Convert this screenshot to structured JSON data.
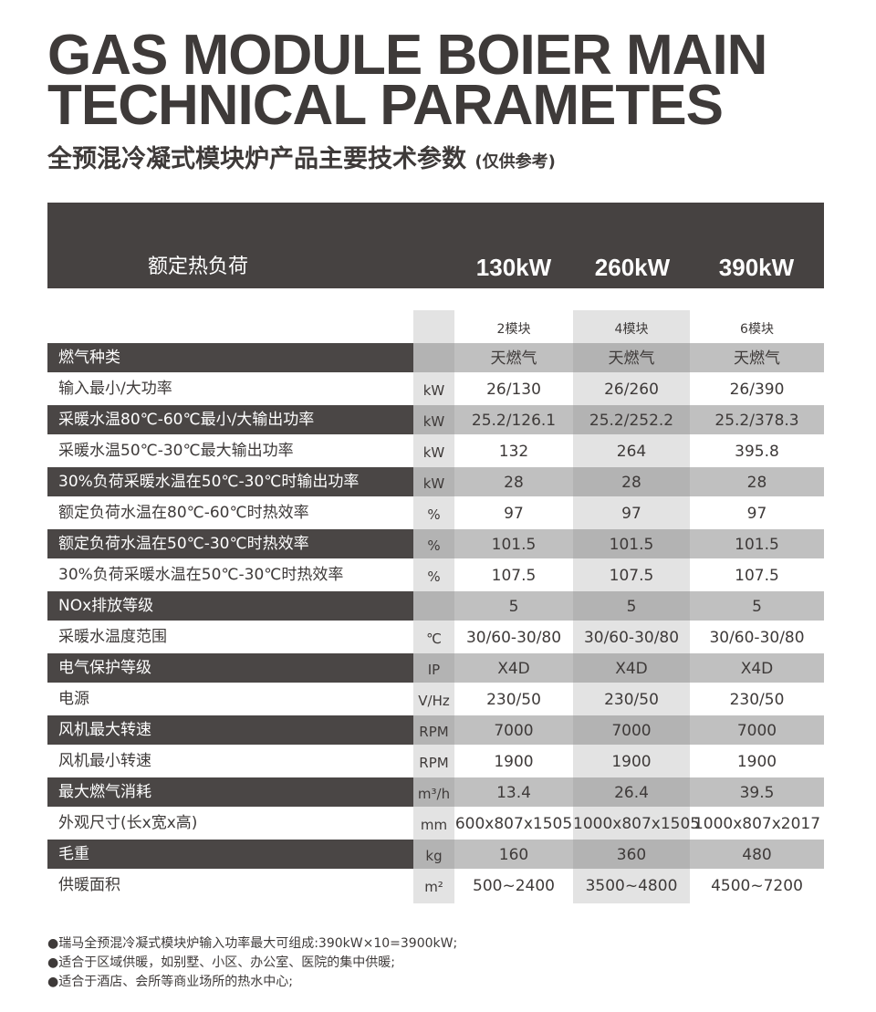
{
  "title": {
    "line1": "GAS MODULE BOIER MAIN",
    "line2": "TECHNICAL PARAMETES",
    "subtitle": "全预混冷凝式模块炉产品主要技术参数",
    "subtitle_note": "(仅供参考)"
  },
  "header": {
    "label": "额定热负荷",
    "capacities": [
      "130kW",
      "260kW",
      "390kW"
    ],
    "modules": [
      "2模块",
      "4模块",
      "6模块"
    ]
  },
  "rows": [
    {
      "label": "燃气种类",
      "unit": "",
      "values": [
        "天燃气",
        "天燃气",
        "天燃气"
      ]
    },
    {
      "label": "输入最小/大功率",
      "unit": "kW",
      "values": [
        "26/130",
        "26/260",
        "26/390"
      ]
    },
    {
      "label": "采暖水温80℃-60℃最小/大输出功率",
      "unit": "kW",
      "values": [
        "25.2/126.1",
        "25.2/252.2",
        "25.2/378.3"
      ]
    },
    {
      "label": "采暖水温50℃-30℃最大输出功率",
      "unit": "kW",
      "values": [
        "132",
        "264",
        "395.8"
      ]
    },
    {
      "label": "30%负荷采暖水温在50℃-30℃时输出功率",
      "unit": "kW",
      "values": [
        "28",
        "28",
        "28"
      ]
    },
    {
      "label": "额定负荷水温在80℃-60℃时热效率",
      "unit": "%",
      "values": [
        "97",
        "97",
        "97"
      ]
    },
    {
      "label": "额定负荷水温在50℃-30℃时热效率",
      "unit": "%",
      "values": [
        "101.5",
        "101.5",
        "101.5"
      ]
    },
    {
      "label": "30%负荷采暖水温在50℃-30℃时热效率",
      "unit": "%",
      "values": [
        "107.5",
        "107.5",
        "107.5"
      ]
    },
    {
      "label": "NOx排放等级",
      "unit": "",
      "values": [
        "5",
        "5",
        "5"
      ]
    },
    {
      "label": "采暖水温度范围",
      "unit": "℃",
      "values": [
        "30/60-30/80",
        "30/60-30/80",
        "30/60-30/80"
      ]
    },
    {
      "label": "电气保护等级",
      "unit": "IP",
      "values": [
        "X4D",
        "X4D",
        "X4D"
      ]
    },
    {
      "label": "电源",
      "unit": "V/Hz",
      "values": [
        "230/50",
        "230/50",
        "230/50"
      ]
    },
    {
      "label": "风机最大转速",
      "unit": "RPM",
      "values": [
        "7000",
        "7000",
        "7000"
      ]
    },
    {
      "label": "风机最小转速",
      "unit": "RPM",
      "values": [
        "1900",
        "1900",
        "1900"
      ]
    },
    {
      "label": "最大燃气消耗",
      "unit": "m³/h",
      "values": [
        "13.4",
        "26.4",
        "39.5"
      ]
    },
    {
      "label": "外观尺寸(长x宽x高)",
      "unit": "mm",
      "values": [
        "600x807x1505",
        "1000x807x1505",
        "1000x807x2017"
      ]
    },
    {
      "label": "毛重",
      "unit": "kg",
      "values": [
        "160",
        "360",
        "480"
      ]
    },
    {
      "label": "供暖面积",
      "unit": "m²",
      "values": [
        "500~2400",
        "3500~4800",
        "4500~7200"
      ]
    }
  ],
  "notes": [
    "●瑞马全预混冷凝式模块炉输入功率最大可组成:390kW×10=3900kW;",
    "●适合于区域供暖，如别墅、小区、办公室、医院的集中供暖;",
    "●适合于酒店、会所等商业场所的热水中心;"
  ]
}
